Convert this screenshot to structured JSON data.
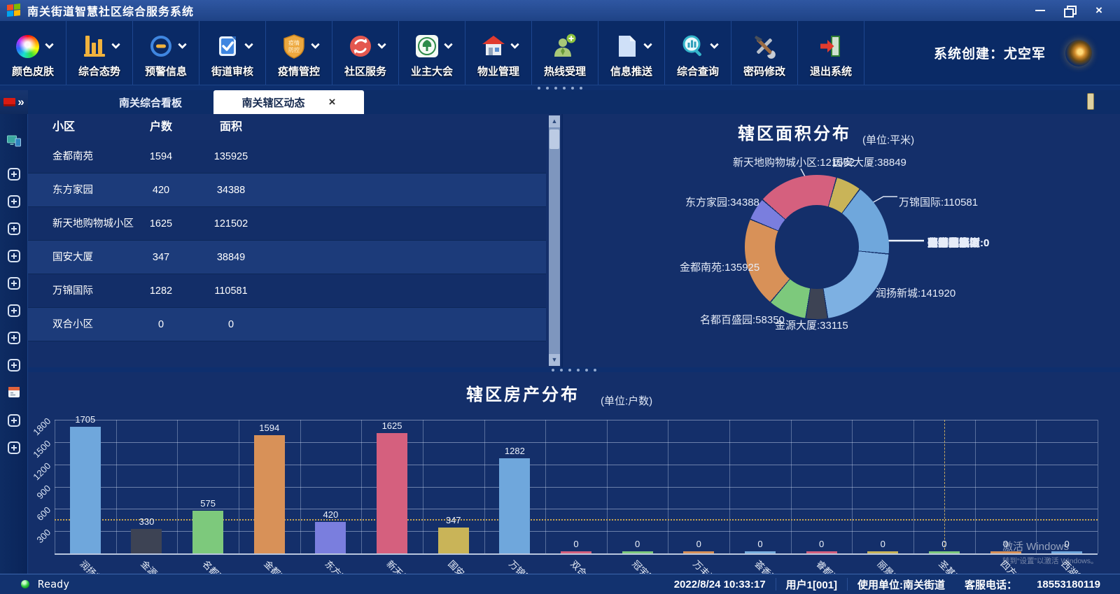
{
  "window": {
    "title": "南关街道智慧社区综合服务系统"
  },
  "toolbar": {
    "creator": "系统创建：尤空军",
    "items": [
      {
        "label": "颜色皮肤",
        "icon": "color-wheel-icon",
        "dropdown": true
      },
      {
        "label": "综合态势",
        "icon": "bar-chart-icon",
        "dropdown": true
      },
      {
        "label": "预警信息",
        "icon": "warning-icon",
        "dropdown": true
      },
      {
        "label": "街道审核",
        "icon": "audit-check-icon",
        "dropdown": true
      },
      {
        "label": "疫情管控",
        "icon": "epidemic-shield-icon",
        "dropdown": true
      },
      {
        "label": "社区服务",
        "icon": "service-arrows-icon",
        "dropdown": true
      },
      {
        "label": "业主大会",
        "icon": "owners-emblem-icon",
        "dropdown": true
      },
      {
        "label": "物业管理",
        "icon": "house-icon",
        "dropdown": true
      },
      {
        "label": "热线受理",
        "icon": "hotline-person-icon",
        "dropdown": false
      },
      {
        "label": "信息推送",
        "icon": "document-icon",
        "dropdown": true
      },
      {
        "label": "综合查询",
        "icon": "search-chart-icon",
        "dropdown": true
      },
      {
        "label": "密码修改",
        "icon": "tools-icon",
        "dropdown": false
      },
      {
        "label": "退出系统",
        "icon": "exit-door-icon",
        "dropdown": false
      }
    ]
  },
  "tabs": [
    {
      "label": "南关综合看板",
      "active": false
    },
    {
      "label": "南关辖区动态",
      "active": true,
      "close": "×"
    }
  ],
  "sidebar": {
    "icons": [
      "monitor-icon",
      "expand-icon",
      "expand-icon",
      "expand-icon",
      "expand-icon",
      "expand-icon",
      "expand-icon",
      "expand-icon",
      "expand-icon",
      "calendar-icon",
      "expand-icon",
      "expand-icon"
    ]
  },
  "table": {
    "headers": [
      "小区",
      "户数",
      "面积"
    ],
    "rows": [
      [
        "金都南苑",
        1594,
        135925
      ],
      [
        "东方家园",
        420,
        34388
      ],
      [
        "新天地购物城小区",
        1625,
        121502
      ],
      [
        "国安大厦",
        347,
        38849
      ],
      [
        "万锦国际",
        1282,
        110581
      ],
      [
        "双合小区",
        0,
        0
      ]
    ]
  },
  "chart_data": [
    {
      "type": "pie",
      "title": "辖区面积分布",
      "subtitle": "(单位:平米)",
      "unit": "平米",
      "start_angle": 311,
      "legend_position": "none",
      "series": [
        {
          "name": "新天地购物城小区",
          "value": 121502,
          "color": "#d5607e"
        },
        {
          "name": "国安大厦",
          "value": 38849,
          "color": "#c9b458"
        },
        {
          "name": "万锦国际",
          "value": 110581,
          "color": "#6fa7dc"
        },
        {
          "name": "双合小区",
          "value": 0,
          "color": "#d5607e"
        },
        {
          "name": "冠宇国际",
          "value": 0,
          "color": "#7dc97c"
        },
        {
          "name": "万丰源小区",
          "value": 0,
          "color": "#d89158"
        },
        {
          "name": "荟香雅筑",
          "value": 0,
          "color": "#6fa7dc"
        },
        {
          "name": "睿都湖交汇",
          "value": 0,
          "color": "#c9b458"
        },
        {
          "name": "丽景苑",
          "value": 0,
          "color": "#7a7ede"
        },
        {
          "name": "圣基天水榭",
          "value": 0,
          "color": "#d5607e"
        },
        {
          "name": "四方幸福",
          "value": 0,
          "color": "#7dc97c"
        },
        {
          "name": "西湖御景",
          "value": 0,
          "color": "#d89158"
        },
        {
          "name": "润扬新城",
          "value": 141920,
          "color": "#7db0e2"
        },
        {
          "name": "金源大厦",
          "value": 33115,
          "color": "#3d4354"
        },
        {
          "name": "名都百盛园",
          "value": 58350,
          "color": "#7dc97c"
        },
        {
          "name": "金都南苑",
          "value": 135925,
          "color": "#d89158"
        },
        {
          "name": "东方家园",
          "value": 34388,
          "color": "#7a7ede"
        }
      ]
    },
    {
      "type": "bar",
      "title": "辖区房产分布",
      "subtitle": "(单位:户数)",
      "unit": "户数",
      "ylim": [
        0,
        1800
      ],
      "yticks": [
        300,
        600,
        900,
        1200,
        1500,
        1800
      ],
      "grid": true,
      "average_line": 463,
      "categories": [
        "润扬新城",
        "金源大厦",
        "名都百盛园",
        "金都南苑",
        "东方家园",
        "新天地购物城小区",
        "国安大厦",
        "万锦国际",
        "双合小区",
        "冠宇国际",
        "万丰源小区",
        "荟香雅筑",
        "睿都湖交汇",
        "丽景苑",
        "圣基天水榭",
        "四方幸福",
        "西湖御景"
      ],
      "values": [
        1705,
        330,
        575,
        1594,
        420,
        1625,
        347,
        1282,
        0,
        0,
        0,
        0,
        0,
        0,
        0,
        0,
        0
      ],
      "colors": [
        "#6fa7dc",
        "#3d4354",
        "#7dc97c",
        "#d89158",
        "#7a7ede",
        "#d5607e",
        "#c9b458",
        "#6fa7dc",
        "#d5607e",
        "#7dc97c",
        "#d89158",
        "#7ab0e0",
        "#d5607e",
        "#c9b458",
        "#7dc97c",
        "#d89158",
        "#6fa7dc"
      ]
    }
  ],
  "status_bar": {
    "ready": "Ready",
    "datetime": "2022/8/24 10:33:17",
    "user": "用户1[001]",
    "org": "使用单位:南关街道",
    "phone_label": "客服电话：",
    "phone": "18553180119"
  },
  "watermark": {
    "line1": "激活 Windows",
    "line2": "转到“设置”以激活 Windows。"
  }
}
